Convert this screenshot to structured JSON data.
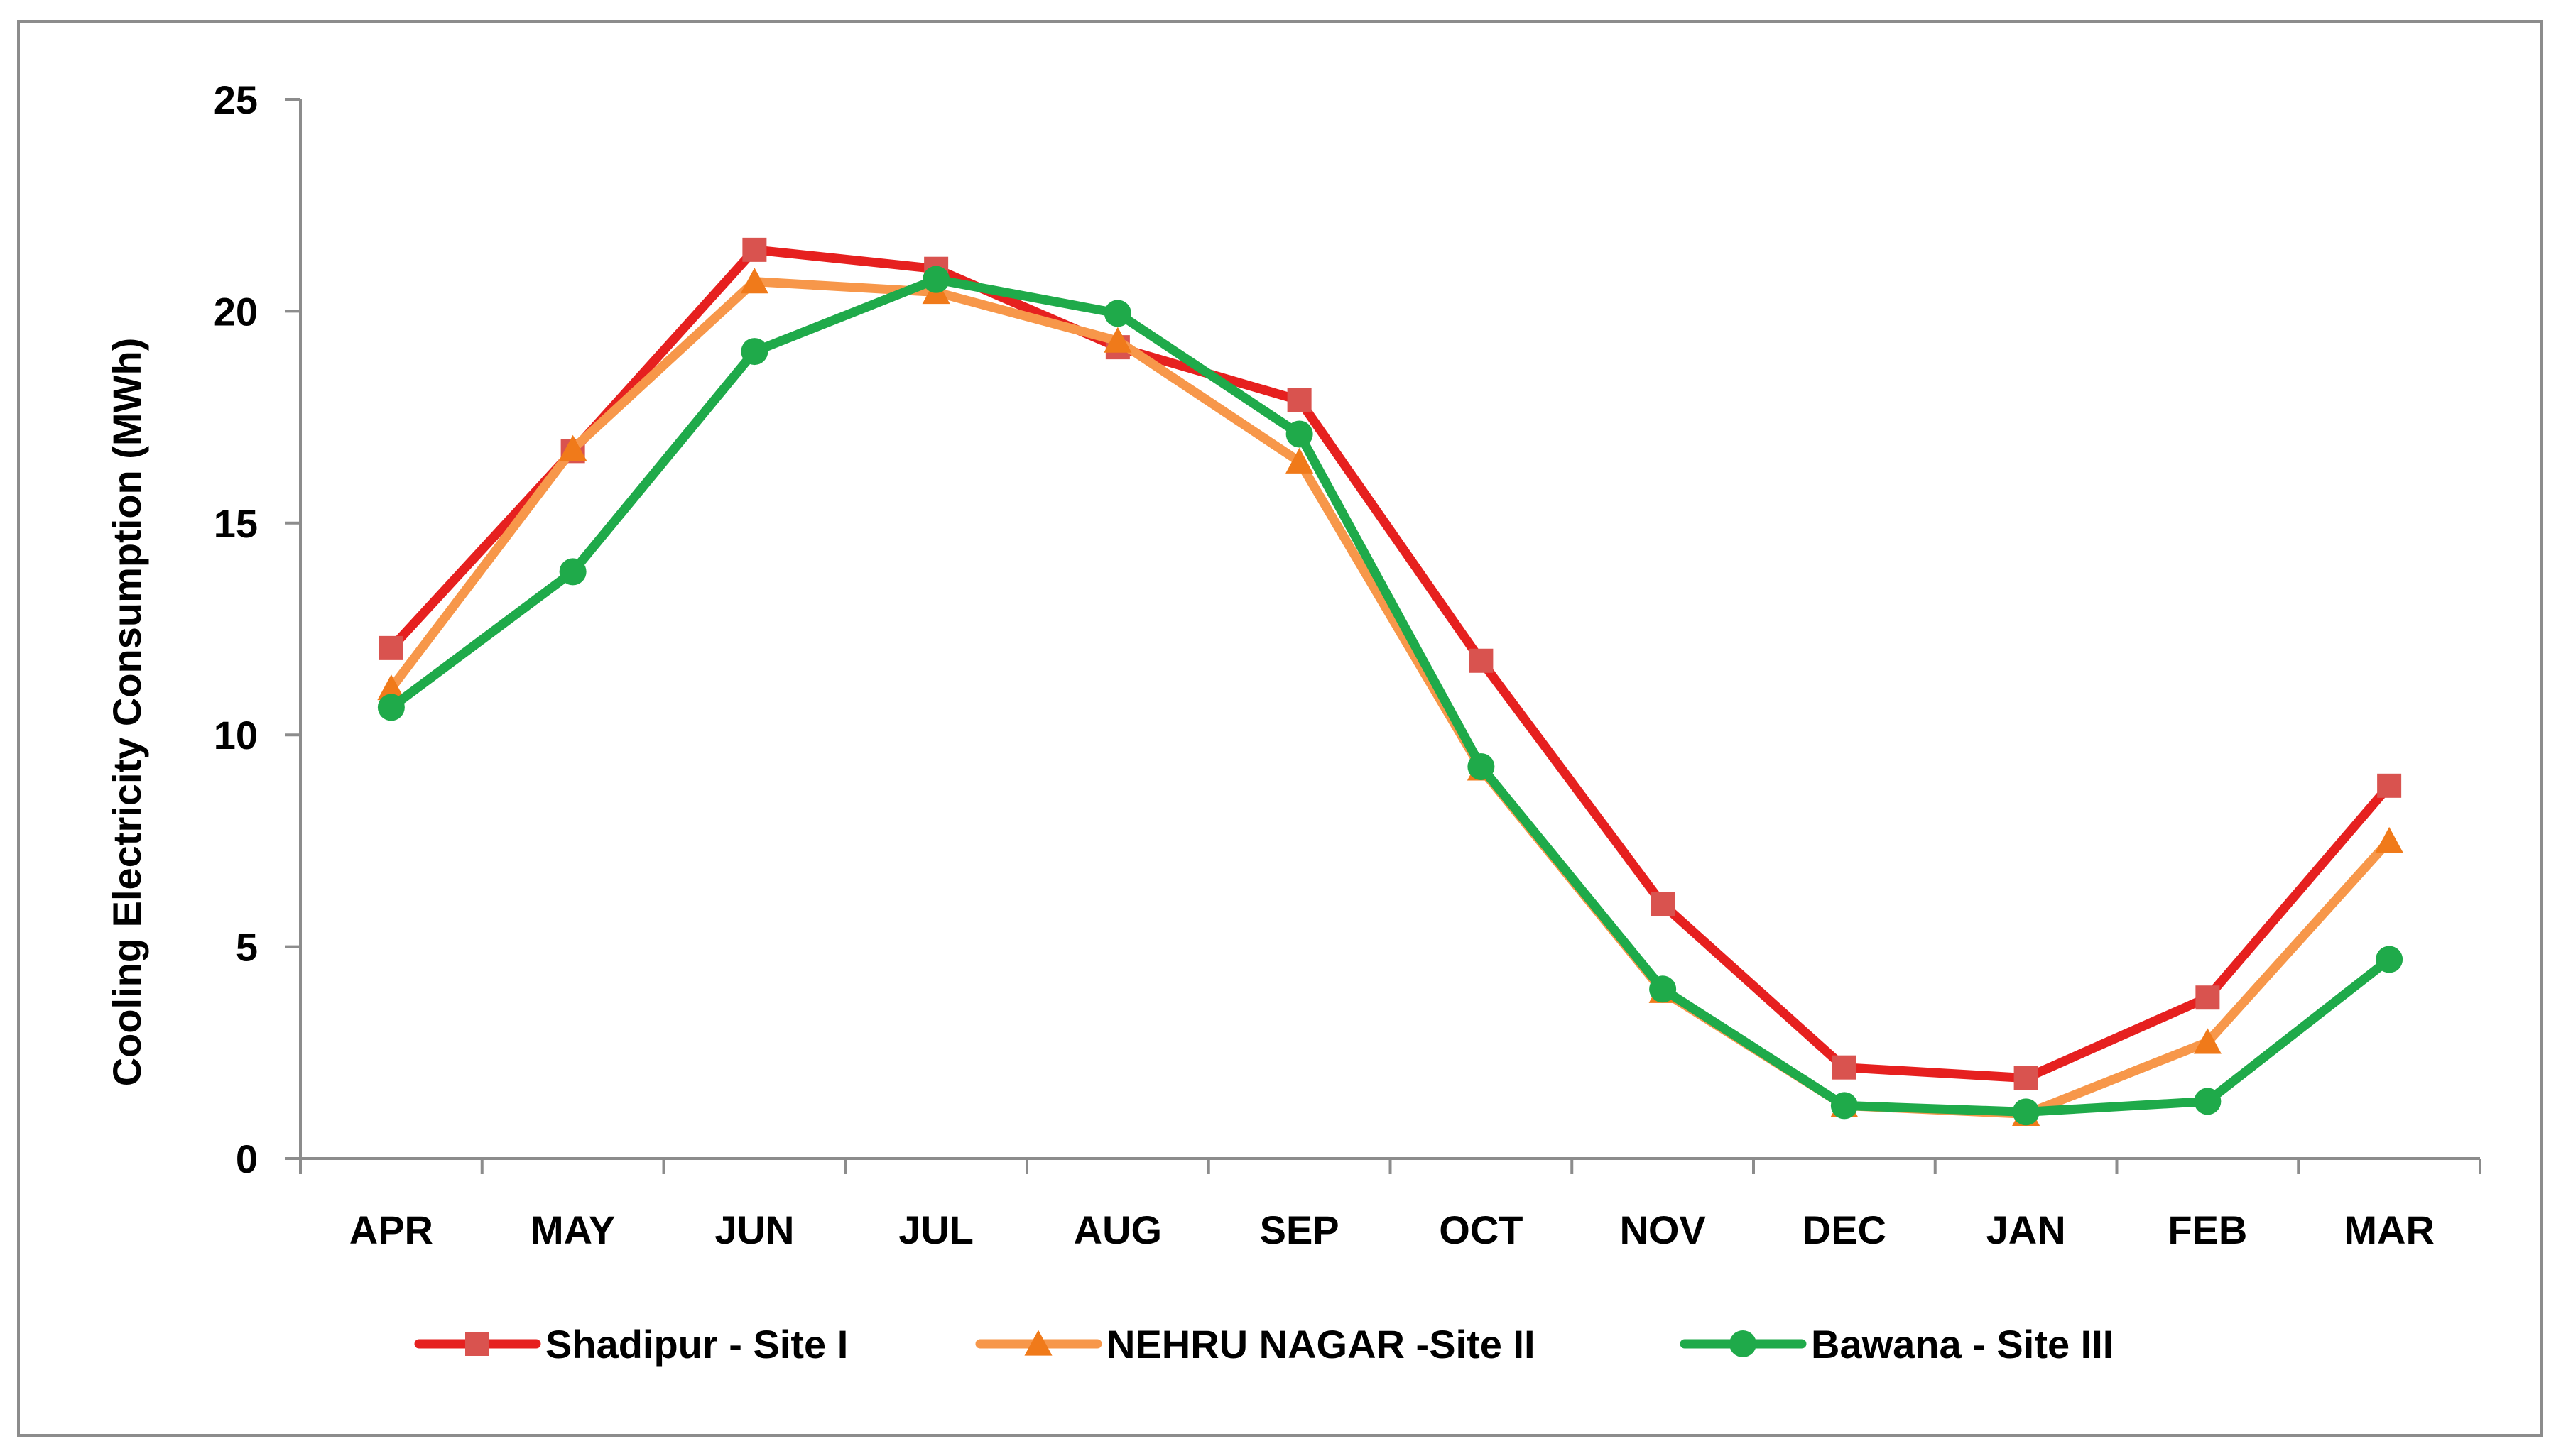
{
  "chart_data": {
    "type": "line",
    "title": "",
    "xlabel": "",
    "ylabel": "Cooling Electricity Consumption (MWh)",
    "ylim": [
      0,
      25
    ],
    "yticks": [
      0,
      5,
      10,
      15,
      20,
      25
    ],
    "grid": false,
    "legend_position": "bottom",
    "categories": [
      "APR",
      "MAY",
      "JUN",
      "JUL",
      "AUG",
      "SEP",
      "OCT",
      "NOV",
      "DEC",
      "JAN",
      "FEB",
      "MAR"
    ],
    "series": [
      {
        "name": "Shadipur - Site I",
        "color": "#e6201f",
        "marker": "square",
        "marker_color": "#d9534f",
        "values": [
          12.05,
          16.7,
          21.45,
          21.0,
          19.15,
          17.9,
          11.75,
          6.0,
          2.15,
          1.9,
          3.8,
          8.8
        ]
      },
      {
        "name": "NEHRU NAGAR -Site II",
        "color": "#f7974a",
        "marker": "triangle",
        "marker_color": "#f07a1a",
        "values": [
          11.1,
          16.75,
          20.7,
          20.45,
          19.3,
          16.45,
          9.2,
          3.95,
          1.25,
          1.05,
          2.75,
          7.5
        ]
      },
      {
        "name": "Bawana - Site III",
        "color": "#1faa4a",
        "marker": "circle",
        "marker_color": "#1faa4a",
        "values": [
          10.65,
          13.85,
          19.05,
          20.75,
          19.95,
          17.1,
          9.25,
          4.0,
          1.25,
          1.1,
          1.35,
          4.7
        ]
      }
    ]
  }
}
